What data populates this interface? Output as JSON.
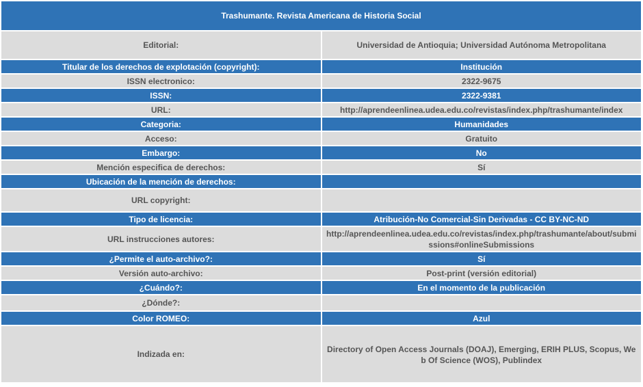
{
  "title": "Trashumante. Revista Americana de Historia Social",
  "rows": [
    {
      "label": "Editorial:",
      "value": "Universidad de Antioquia; Universidad Autónoma Metropolitana"
    },
    {
      "label": "Titular de los derechos de explotación (copyright):",
      "value": "Institución"
    },
    {
      "label": "ISSN electronico:",
      "value": "2322-9675"
    },
    {
      "label": "ISSN:",
      "value": "2322-9381"
    },
    {
      "label": "URL:",
      "value": "http://aprendeenlinea.udea.edu.co/revistas/index.php/trashumante/index"
    },
    {
      "label": "Categoria:",
      "value": "Humanidades"
    },
    {
      "label": "Acceso:",
      "value": "Gratuito"
    },
    {
      "label": "Embargo:",
      "value": "No"
    },
    {
      "label": "Mención especifica de derechos:",
      "value": "Sí"
    },
    {
      "label": "Ubicación de la mención de derechos:",
      "value": ""
    },
    {
      "label": "URL copyright:",
      "value": ""
    },
    {
      "label": "Tipo de licencia:",
      "value": "Atribución-No Comercial-Sin Derivadas - CC BY-NC-ND"
    },
    {
      "label": "URL instrucciones autores:",
      "value": "http://aprendeenlinea.udea.edu.co/revistas/index.php/trashumante/about/submissions#onlineSubmissions"
    },
    {
      "label": "¿Permite el auto-archivo?:",
      "value": "Sí"
    },
    {
      "label": "Versión auto-archivo:",
      "value": "Post-print (versión editorial)"
    },
    {
      "label": "¿Cuándo?:",
      "value": "En el momento de la publicación"
    },
    {
      "label": "¿Dónde?:",
      "value": ""
    },
    {
      "label": "Color ROMEO:",
      "value": "Azul"
    },
    {
      "label": "Indizada en:",
      "value": "Directory of Open Access Journals (DOAJ), Emerging, ERIH PLUS, Scopus, Web Of Science (WOS), Publindex"
    }
  ],
  "colors": {
    "header_blue": "#2f73b6",
    "row_gray": "#dcdcdc",
    "text_gray": "#555555"
  }
}
